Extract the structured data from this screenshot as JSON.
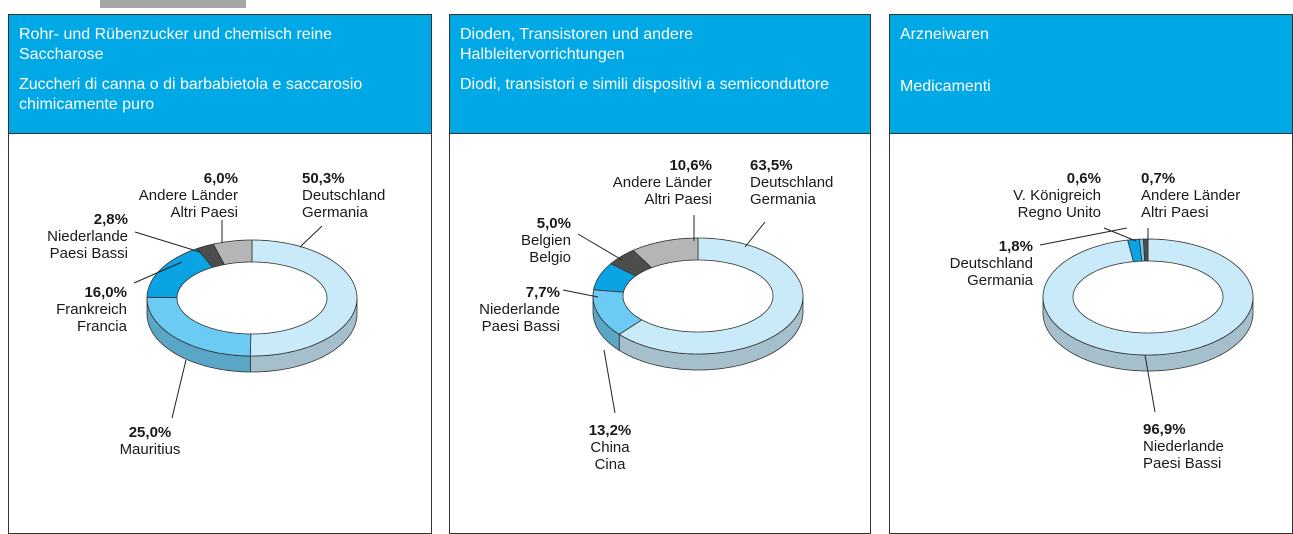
{
  "chart_data": [
    {
      "type": "pie",
      "donut": true,
      "title": "Rohr- und Rübenzucker und chemisch reine Saccharose",
      "subtitle": "Zuccheri di canna o di barbabietola e saccarosio chimicamente puro",
      "categories": [
        "Deutschland",
        "Mauritius",
        "Frankreich",
        "Niederlande",
        "Andere Länder"
      ],
      "categories_alt": [
        "Germania",
        null,
        "Francia",
        "Paesi Bassi",
        "Altri Paesi"
      ],
      "values": [
        50.3,
        25.0,
        16.0,
        2.8,
        6.0
      ],
      "value_labels": [
        "50,3%",
        "25,0%",
        "16,0%",
        "2,8%",
        "6,0%"
      ],
      "colors": [
        "#c9eaf9",
        "#6ccbf2",
        "#0aa3e4",
        "#4d4d4d",
        "#b5b5b5"
      ]
    },
    {
      "type": "pie",
      "donut": true,
      "title": "Dioden, Transistoren und andere Halbleitervorrichtungen",
      "subtitle": "Diodi, transistori e simili dispositivi a semiconduttore",
      "categories": [
        "Deutschland",
        "China",
        "Niederlande",
        "Belgien",
        "Andere Länder"
      ],
      "categories_alt": [
        "Germania",
        "Cina",
        "Paesi Bassi",
        "Belgio",
        "Altri Paesi"
      ],
      "values": [
        63.5,
        13.2,
        7.7,
        5.0,
        10.6
      ],
      "value_labels": [
        "63,5%",
        "13,2%",
        "7,7%",
        "5,0%",
        "10,6%"
      ],
      "colors": [
        "#c9eaf9",
        "#6ccbf2",
        "#0aa3e4",
        "#4d4d4d",
        "#b5b5b5"
      ]
    },
    {
      "type": "pie",
      "donut": true,
      "title": "Arzneiwaren",
      "subtitle": "Medicamenti",
      "categories": [
        "Niederlande",
        "Deutschland",
        "V. Königreich",
        "Andere Länder"
      ],
      "categories_alt": [
        "Paesi Bassi",
        "Germania",
        "Regno Unito",
        "Altri Paesi"
      ],
      "values": [
        96.9,
        1.8,
        0.6,
        0.7
      ],
      "value_labels": [
        "96,9%",
        "1,8%",
        "0,6%",
        "0,7%"
      ],
      "colors": [
        "#c9eaf9",
        "#0aa3e4",
        "#6ccbf2",
        "#4d4d4d"
      ]
    }
  ]
}
